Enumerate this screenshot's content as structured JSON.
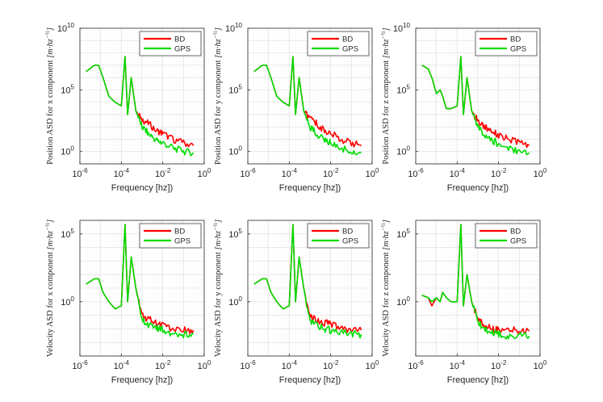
{
  "chart_data": [
    {
      "type": "line",
      "xlabel": "Frequency [hz])",
      "ylabel": "Position ASD for x component",
      "yunit": "[m·hz^(-1/2)]",
      "xscale": "log",
      "yscale": "log",
      "xlim": [
        1e-06,
        1
      ],
      "ylim": [
        0.1,
        10000000000.0
      ],
      "xticks": [
        "10^-6",
        "10^-4",
        "10^-2",
        "10^0"
      ],
      "yticks": [
        "10^0",
        "10^5",
        "10^10"
      ],
      "grid": true,
      "legend_position": "top-right",
      "series": [
        {
          "name": "BD",
          "color": "#ff0000",
          "x": [
            2e-06,
            5e-06,
            8e-06,
            1.3e-05,
            2.5e-05,
            5e-05,
            0.0001,
            0.00015,
            0.0002,
            0.0003,
            0.0005,
            0.001,
            0.002,
            0.005,
            0.01,
            0.03,
            0.1,
            0.3
          ],
          "y": [
            3000000,
            10000000,
            10000000,
            1000000,
            30000,
            10000,
            5000,
            50000000,
            1000,
            1000000,
            2000,
            400,
            200,
            50,
            30,
            10,
            5,
            3
          ]
        },
        {
          "name": "GPS",
          "color": "#00dd00",
          "x": [
            2e-06,
            5e-06,
            8e-06,
            1.3e-05,
            2.5e-05,
            5e-05,
            0.0001,
            0.00015,
            0.0002,
            0.0003,
            0.0005,
            0.001,
            0.002,
            0.005,
            0.01,
            0.03,
            0.1,
            0.3
          ],
          "y": [
            3000000,
            10000000,
            10000000,
            1000000,
            30000,
            10000,
            5000,
            50000000,
            1000,
            1000000,
            2000,
            100,
            30,
            8,
            5,
            2,
            1,
            0.8
          ]
        }
      ]
    },
    {
      "type": "line",
      "xlabel": "Frequency [hz])",
      "ylabel": "Position ASD for y component",
      "yunit": "[m·hz^(-1/2)]",
      "xscale": "log",
      "yscale": "log",
      "xlim": [
        1e-06,
        1
      ],
      "ylim": [
        0.1,
        10000000000.0
      ],
      "xticks": [
        "10^-6",
        "10^-4",
        "10^-2",
        "10^0"
      ],
      "yticks": [
        "10^0",
        "10^5",
        "10^10"
      ],
      "grid": true,
      "legend_position": "top-right",
      "series": [
        {
          "name": "BD",
          "color": "#ff0000",
          "x": [
            2e-06,
            5e-06,
            8e-06,
            1.3e-05,
            2.5e-05,
            5e-05,
            0.0001,
            0.00015,
            0.0002,
            0.0003,
            0.0005,
            0.001,
            0.002,
            0.005,
            0.01,
            0.03,
            0.1,
            0.3
          ],
          "y": [
            3000000,
            10000000,
            10000000,
            1000000,
            30000,
            10000,
            5000,
            50000000,
            1000,
            1000000,
            2000,
            400,
            200,
            50,
            30,
            10,
            5,
            3
          ]
        },
        {
          "name": "GPS",
          "color": "#00dd00",
          "x": [
            2e-06,
            5e-06,
            8e-06,
            1.3e-05,
            2.5e-05,
            5e-05,
            0.0001,
            0.00015,
            0.0002,
            0.0003,
            0.0005,
            0.001,
            0.002,
            0.005,
            0.01,
            0.03,
            0.1,
            0.3
          ],
          "y": [
            3000000,
            10000000,
            10000000,
            1000000,
            30000,
            10000,
            5000,
            50000000,
            1000,
            1000000,
            2000,
            100,
            30,
            8,
            5,
            2,
            1,
            0.8
          ]
        }
      ]
    },
    {
      "type": "line",
      "xlabel": "Frequency [hz])",
      "ylabel": "Position ASD for z component",
      "yunit": "[m·hz^(-1/2)]",
      "xscale": "log",
      "yscale": "log",
      "xlim": [
        1e-06,
        1
      ],
      "ylim": [
        0.1,
        10000000000.0
      ],
      "xticks": [
        "10^-6",
        "10^-4",
        "10^-2",
        "10^0"
      ],
      "yticks": [
        "10^0",
        "10^5",
        "10^10"
      ],
      "grid": true,
      "legend_position": "top-right",
      "series": [
        {
          "name": "BD",
          "color": "#ff0000",
          "x": [
            2e-06,
            4e-06,
            6e-06,
            1e-05,
            1.5e-05,
            2e-05,
            3e-05,
            5e-05,
            0.0001,
            0.00015,
            0.0002,
            0.0003,
            0.0005,
            0.001,
            0.002,
            0.005,
            0.01,
            0.03,
            0.1,
            0.3
          ],
          "y": [
            10000000,
            5000000,
            1000000,
            50000,
            100000,
            30000,
            3000,
            3000,
            5000,
            50000000,
            1000,
            1000000,
            2000,
            300,
            100,
            50,
            20,
            10,
            5,
            3
          ]
        },
        {
          "name": "GPS",
          "color": "#00dd00",
          "x": [
            2e-06,
            4e-06,
            6e-06,
            1e-05,
            1.5e-05,
            2e-05,
            3e-05,
            5e-05,
            0.0001,
            0.00015,
            0.0002,
            0.0003,
            0.0005,
            0.001,
            0.002,
            0.005,
            0.01,
            0.03,
            0.1,
            0.3
          ],
          "y": [
            10000000,
            5000000,
            1000000,
            50000,
            100000,
            30000,
            3000,
            3000,
            5000,
            50000000,
            1000,
            1000000,
            2000,
            100,
            20,
            8,
            4,
            2,
            1,
            0.8
          ]
        }
      ]
    },
    {
      "type": "line",
      "xlabel": "Frequency [hz])",
      "ylabel": "Velocity ASD for x component",
      "yunit": "[m·hz^(-1/2)]",
      "xscale": "log",
      "yscale": "log",
      "xlim": [
        1e-06,
        1
      ],
      "ylim": [
        0.0001,
        1000000
      ],
      "xticks": [
        "10^-6",
        "10^-4",
        "10^-2",
        "10^0"
      ],
      "yticks": [
        "10^0",
        "10^5"
      ],
      "grid": true,
      "legend_position": "top-right",
      "series": [
        {
          "name": "BD",
          "color": "#ff0000",
          "x": [
            2e-06,
            5e-06,
            8e-06,
            1.3e-05,
            2.5e-05,
            5e-05,
            0.0001,
            0.00015,
            0.0002,
            0.0003,
            0.0005,
            0.001,
            0.002,
            0.005,
            0.01,
            0.03,
            0.1,
            0.3
          ],
          "y": [
            20,
            50,
            50,
            5,
            1,
            0.3,
            0.5,
            500000,
            1,
            2000,
            10,
            0.1,
            0.05,
            0.03,
            0.02,
            0.01,
            0.008,
            0.008
          ]
        },
        {
          "name": "GPS",
          "color": "#00dd00",
          "x": [
            2e-06,
            5e-06,
            8e-06,
            1.3e-05,
            2.5e-05,
            5e-05,
            0.0001,
            0.00015,
            0.0002,
            0.0003,
            0.0005,
            0.001,
            0.002,
            0.005,
            0.01,
            0.03,
            0.1,
            0.3
          ],
          "y": [
            20,
            50,
            50,
            5,
            1,
            0.3,
            0.5,
            500000,
            1,
            2000,
            10,
            0.05,
            0.02,
            0.01,
            0.008,
            0.005,
            0.004,
            0.004
          ]
        }
      ]
    },
    {
      "type": "line",
      "xlabel": "Frequency [hz])",
      "ylabel": "Velocity ASD for y component",
      "yunit": "[m·hz^(-1/2)]",
      "xscale": "log",
      "yscale": "log",
      "xlim": [
        1e-06,
        1
      ],
      "ylim": [
        0.0001,
        1000000
      ],
      "xticks": [
        "10^-6",
        "10^-4",
        "10^-2",
        "10^0"
      ],
      "yticks": [
        "10^0",
        "10^5"
      ],
      "grid": true,
      "legend_position": "top-right",
      "series": [
        {
          "name": "BD",
          "color": "#ff0000",
          "x": [
            2e-06,
            5e-06,
            8e-06,
            1.3e-05,
            2.5e-05,
            5e-05,
            0.0001,
            0.00015,
            0.0002,
            0.0003,
            0.0005,
            0.001,
            0.002,
            0.005,
            0.01,
            0.03,
            0.1,
            0.3
          ],
          "y": [
            20,
            50,
            50,
            5,
            1,
            0.3,
            0.5,
            500000,
            1,
            2000,
            10,
            0.1,
            0.05,
            0.03,
            0.02,
            0.01,
            0.008,
            0.008
          ]
        },
        {
          "name": "GPS",
          "color": "#00dd00",
          "x": [
            2e-06,
            5e-06,
            8e-06,
            1.3e-05,
            2.5e-05,
            5e-05,
            0.0001,
            0.00015,
            0.0002,
            0.0003,
            0.0005,
            0.001,
            0.002,
            0.005,
            0.01,
            0.03,
            0.1,
            0.3
          ],
          "y": [
            20,
            50,
            50,
            5,
            1,
            0.3,
            0.5,
            500000,
            1,
            2000,
            10,
            0.05,
            0.02,
            0.01,
            0.008,
            0.005,
            0.004,
            0.004
          ]
        }
      ]
    },
    {
      "type": "line",
      "xlabel": "Frequency [hz])",
      "ylabel": "Velocity ASD for z component",
      "yunit": "[m·hz^(-1/2)]",
      "xscale": "log",
      "yscale": "log",
      "xlim": [
        1e-06,
        1
      ],
      "ylim": [
        0.0001,
        1000000
      ],
      "xticks": [
        "10^-6",
        "10^-4",
        "10^-2",
        "10^0"
      ],
      "yticks": [
        "10^0",
        "10^5"
      ],
      "grid": true,
      "legend_position": "top-right",
      "series": [
        {
          "name": "BD",
          "color": "#ff0000",
          "x": [
            2e-06,
            4e-06,
            6e-06,
            1e-05,
            1.5e-05,
            2e-05,
            3e-05,
            5e-05,
            0.0001,
            0.00015,
            0.0002,
            0.0003,
            0.0005,
            0.001,
            0.002,
            0.005,
            0.01,
            0.03,
            0.1,
            0.3
          ],
          "y": [
            3,
            2,
            0.5,
            2,
            1,
            5,
            2,
            1,
            1,
            500000,
            0.5,
            100,
            1,
            0.05,
            0.02,
            0.01,
            0.008,
            0.008,
            0.007,
            0.007
          ]
        },
        {
          "name": "GPS",
          "color": "#00dd00",
          "x": [
            2e-06,
            4e-06,
            6e-06,
            1e-05,
            1.5e-05,
            2e-05,
            3e-05,
            5e-05,
            0.0001,
            0.00015,
            0.0002,
            0.0003,
            0.0005,
            0.001,
            0.002,
            0.005,
            0.01,
            0.03,
            0.1,
            0.3
          ],
          "y": [
            3,
            2,
            1,
            2,
            1,
            5,
            2,
            1,
            1,
            500000,
            0.5,
            100,
            1,
            0.03,
            0.01,
            0.005,
            0.004,
            0.003,
            0.003,
            0.003
          ]
        }
      ]
    }
  ]
}
